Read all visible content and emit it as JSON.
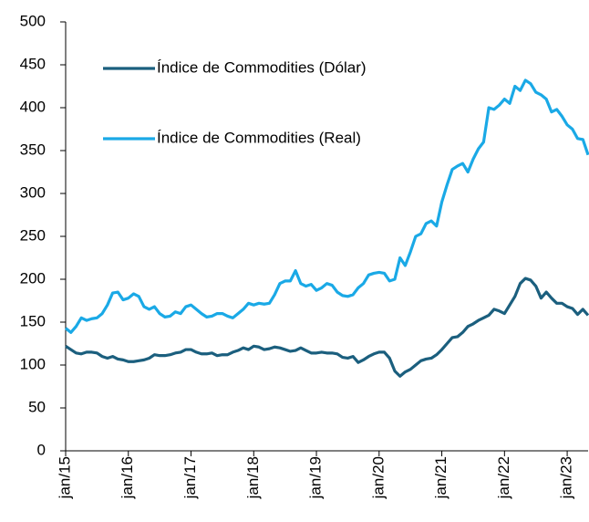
{
  "chart_data": {
    "type": "line",
    "categories": [
      "jan/15",
      null,
      null,
      null,
      null,
      null,
      null,
      null,
      null,
      null,
      null,
      null,
      "jan/16",
      null,
      null,
      null,
      null,
      null,
      null,
      null,
      null,
      null,
      null,
      null,
      "jan/17",
      null,
      null,
      null,
      null,
      null,
      null,
      null,
      null,
      null,
      null,
      null,
      "jan/18",
      null,
      null,
      null,
      null,
      null,
      null,
      null,
      null,
      null,
      null,
      null,
      "jan/19",
      null,
      null,
      null,
      null,
      null,
      null,
      null,
      null,
      null,
      null,
      null,
      "jan/20",
      null,
      null,
      null,
      null,
      null,
      null,
      null,
      null,
      null,
      null,
      null,
      "jan/21",
      null,
      null,
      null,
      null,
      null,
      null,
      null,
      null,
      null,
      null,
      null,
      "jan/22",
      null,
      null,
      null,
      null,
      null,
      null,
      null,
      null,
      null,
      null,
      null,
      "jan/23",
      null,
      null,
      null,
      null
    ],
    "series": [
      {
        "name": "Índice de Commodities (Dólar)",
        "color": "#1b5f7e",
        "values": [
          122,
          118,
          114,
          113,
          115,
          115,
          114,
          110,
          108,
          110,
          107,
          106,
          104,
          104,
          105,
          106,
          108,
          112,
          111,
          111,
          112,
          114,
          115,
          118,
          118,
          115,
          113,
          113,
          114,
          111,
          112,
          112,
          115,
          117,
          120,
          118,
          122,
          121,
          118,
          119,
          121,
          120,
          118,
          116,
          117,
          120,
          117,
          114,
          114,
          115,
          114,
          114,
          113,
          109,
          108,
          110,
          103,
          106,
          110,
          113,
          115,
          115,
          108,
          93,
          87,
          92,
          95,
          100,
          105,
          107,
          108,
          112,
          118,
          125,
          132,
          133,
          138,
          145,
          148,
          152,
          155,
          158,
          165,
          163,
          160,
          170,
          180,
          195,
          201,
          199,
          192,
          178,
          185,
          178,
          172,
          172,
          168,
          166,
          159,
          165,
          158
        ]
      },
      {
        "name": "Índice de Commodities (Real)",
        "color": "#1aa9e6",
        "values": [
          143,
          138,
          145,
          155,
          152,
          154,
          155,
          160,
          170,
          184,
          185,
          176,
          178,
          183,
          180,
          168,
          165,
          168,
          160,
          156,
          157,
          162,
          160,
          168,
          170,
          165,
          160,
          156,
          157,
          160,
          160,
          157,
          155,
          160,
          165,
          172,
          170,
          172,
          171,
          172,
          182,
          195,
          198,
          198,
          210,
          195,
          192,
          194,
          187,
          190,
          195,
          193,
          185,
          181,
          180,
          182,
          190,
          195,
          205,
          207,
          208,
          207,
          198,
          200,
          225,
          216,
          232,
          250,
          253,
          265,
          268,
          262,
          290,
          310,
          328,
          332,
          335,
          325,
          340,
          352,
          360,
          400,
          398,
          403,
          410,
          405,
          425,
          420,
          432,
          428,
          418,
          415,
          410,
          395,
          398,
          390,
          380,
          375,
          364,
          363,
          345
        ]
      }
    ],
    "ylim": [
      0,
      500
    ],
    "yticks": [
      0,
      50,
      100,
      150,
      200,
      250,
      300,
      350,
      400,
      450,
      500
    ],
    "grid": false,
    "legend": "upper left"
  }
}
